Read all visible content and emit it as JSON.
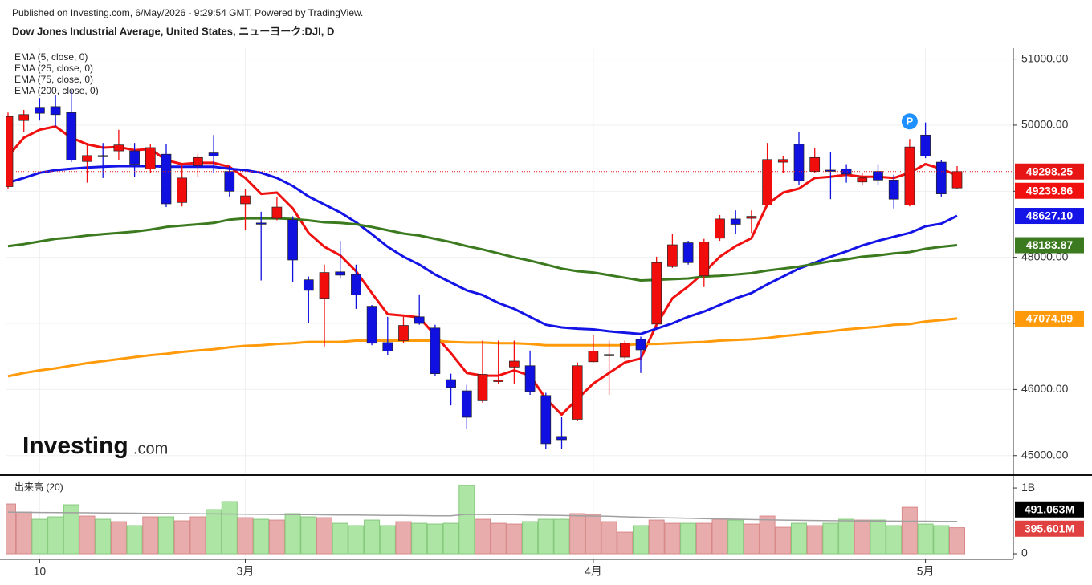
{
  "chart_data": {
    "type": "candlestick",
    "publisher": "Published on Investing.com, 6/May/2026 - 9:29:54 GMT, Powered by TradingView.",
    "title": "Dow Jones Industrial Average, United States, ニューヨーク:DJI, D",
    "logo": "Investing",
    "logo_suffix": ".com",
    "marker": {
      "label": "P",
      "index": 57,
      "color": "#1e90ff"
    },
    "categories": [
      null,
      null,
      "10",
      null,
      null,
      null,
      null,
      null,
      null,
      null,
      null,
      null,
      null,
      null,
      null,
      "3月",
      null,
      null,
      null,
      null,
      null,
      null,
      null,
      null,
      null,
      null,
      null,
      null,
      null,
      null,
      null,
      null,
      null,
      null,
      null,
      null,
      null,
      "4月",
      null,
      null,
      null,
      null,
      null,
      null,
      null,
      null,
      null,
      null,
      null,
      null,
      null,
      null,
      null,
      null,
      null,
      null,
      null,
      null,
      "5月",
      null,
      null
    ],
    "open": [
      49070,
      50070,
      50270,
      50280,
      50190,
      49450,
      49540,
      49610,
      49610,
      49340,
      49560,
      48830,
      49390,
      49580,
      49300,
      48810,
      48520,
      48590,
      48570,
      47660,
      47380,
      47780,
      47740,
      47260,
      46710,
      46740,
      47100,
      46930,
      46150,
      45980,
      45830,
      46120,
      46340,
      46360,
      45910,
      45290,
      45550,
      46420,
      46510,
      46490,
      46760,
      46990,
      47860,
      48220,
      47720,
      48290,
      48580,
      48590,
      48790,
      49440,
      49710,
      49300,
      49320,
      49340,
      49140,
      49300,
      49170,
      48790,
      49850,
      49440,
      49050
    ],
    "high": [
      50190,
      50230,
      50410,
      50460,
      50530,
      49730,
      49730,
      49930,
      49730,
      49710,
      49710,
      49410,
      49560,
      49850,
      49380,
      49040,
      48690,
      48920,
      48620,
      47710,
      47890,
      48250,
      47890,
      47280,
      47100,
      47100,
      47440,
      46980,
      46240,
      46070,
      46740,
      46740,
      46740,
      46590,
      45950,
      45580,
      46410,
      46820,
      46740,
      46740,
      46800,
      48010,
      48350,
      48250,
      48280,
      48640,
      48710,
      48710,
      49730,
      49530,
      49890,
      49650,
      49590,
      49410,
      49280,
      49410,
      49250,
      49790,
      50040,
      49470,
      49380
    ],
    "low": [
      49040,
      49890,
      50070,
      49980,
      49440,
      49130,
      49200,
      49470,
      49220,
      49280,
      48760,
      48770,
      49220,
      49280,
      48920,
      48410,
      47650,
      48560,
      47620,
      47010,
      46650,
      47680,
      47220,
      46670,
      46520,
      46700,
      46980,
      46210,
      45760,
      45400,
      45800,
      46090,
      46090,
      45920,
      45100,
      45100,
      45520,
      46410,
      45920,
      46460,
      46250,
      46970,
      47840,
      47890,
      47550,
      48250,
      48350,
      48370,
      48760,
      49280,
      49100,
      49280,
      48880,
      49130,
      49100,
      49100,
      48740,
      48770,
      49500,
      48920,
      49030
    ],
    "close": [
      50130,
      50160,
      50180,
      50160,
      49470,
      49540,
      49530,
      49700,
      49410,
      49660,
      48810,
      49200,
      49510,
      49530,
      49000,
      48930,
      48510,
      48760,
      47960,
      47500,
      47770,
      47730,
      47430,
      46700,
      46580,
      46970,
      47000,
      46240,
      46030,
      45580,
      46230,
      46140,
      46430,
      45970,
      45180,
      45240,
      46360,
      46580,
      46530,
      46700,
      46600,
      47920,
      48190,
      47920,
      48230,
      48580,
      48500,
      48620,
      49480,
      49480,
      49160,
      49510,
      49310,
      49260,
      49200,
      49170,
      48880,
      49670,
      49530,
      48960,
      49298.25
    ],
    "up_color": "#f20d0d",
    "down_color": "#1010e0",
    "close_badge_color": "#e81515",
    "series": [
      {
        "name": "EMA (5, close, 0)",
        "color": "#f01010",
        "badge": "49239.86",
        "values": [
          49530,
          49810,
          49930,
          49980,
          49810,
          49710,
          49660,
          49670,
          49620,
          49640,
          49470,
          49410,
          49430,
          49430,
          49370,
          49200,
          48960,
          48980,
          48740,
          48370,
          48160,
          48030,
          47790,
          47460,
          47140,
          47120,
          47090,
          46820,
          46550,
          46250,
          46210,
          46210,
          46290,
          46210,
          45860,
          45620,
          45860,
          46090,
          46250,
          46410,
          46470,
          46980,
          47380,
          47560,
          47770,
          48010,
          48170,
          48290,
          48800,
          48980,
          49040,
          49200,
          49220,
          49250,
          49220,
          49220,
          49200,
          49280,
          49410,
          49340,
          49239.86
        ]
      },
      {
        "name": "EMA (25, close, 0)",
        "color": "#1414e6",
        "badge": "48627.10",
        "values": [
          49130,
          49200,
          49280,
          49320,
          49340,
          49360,
          49370,
          49380,
          49380,
          49380,
          49370,
          49370,
          49370,
          49370,
          49340,
          49320,
          49280,
          49200,
          49080,
          48920,
          48800,
          48680,
          48530,
          48350,
          48160,
          48010,
          47890,
          47740,
          47620,
          47500,
          47430,
          47310,
          47220,
          47100,
          46980,
          46940,
          46920,
          46910,
          46880,
          46860,
          46840,
          46920,
          47000,
          47100,
          47180,
          47280,
          47380,
          47460,
          47590,
          47710,
          47830,
          47920,
          48010,
          48090,
          48180,
          48250,
          48310,
          48370,
          48470,
          48510,
          48627.1
        ]
      },
      {
        "name": "EMA (75, close, 0)",
        "color": "#3b7a1e",
        "badge": "48183.87",
        "values": [
          48170,
          48200,
          48240,
          48280,
          48300,
          48330,
          48350,
          48370,
          48390,
          48420,
          48460,
          48480,
          48500,
          48520,
          48570,
          48590,
          48590,
          48590,
          48580,
          48560,
          48530,
          48520,
          48500,
          48460,
          48410,
          48360,
          48330,
          48280,
          48230,
          48170,
          48120,
          48060,
          48000,
          47950,
          47890,
          47830,
          47790,
          47770,
          47730,
          47690,
          47650,
          47660,
          47670,
          47680,
          47710,
          47720,
          47740,
          47760,
          47800,
          47830,
          47860,
          47900,
          47940,
          47970,
          48010,
          48030,
          48060,
          48080,
          48130,
          48160,
          48183.87
        ]
      },
      {
        "name": "EMA (200, close, 0)",
        "color": "#ff9a0a",
        "badge": "47074.09",
        "values": [
          46200,
          46250,
          46290,
          46320,
          46360,
          46400,
          46430,
          46460,
          46490,
          46520,
          46540,
          46570,
          46590,
          46610,
          46640,
          46660,
          46670,
          46690,
          46700,
          46720,
          46720,
          46720,
          46740,
          46740,
          46740,
          46740,
          46740,
          46740,
          46720,
          46710,
          46710,
          46700,
          46700,
          46690,
          46670,
          46670,
          46670,
          46670,
          46670,
          46670,
          46690,
          46690,
          46700,
          46710,
          46720,
          46740,
          46750,
          46760,
          46780,
          46810,
          46830,
          46860,
          46880,
          46910,
          46930,
          46950,
          46980,
          46990,
          47030,
          47050,
          47074.09
        ]
      }
    ],
    "ylim": [
      44730,
      51165
    ],
    "yticks": [
      {
        "value": 45000,
        "label": "45000.00"
      },
      {
        "value": 46000,
        "label": "46000.00"
      },
      {
        "value": 47000,
        "label": "47000.00"
      },
      {
        "value": 48000,
        "label": "48000.00"
      },
      {
        "value": 49000,
        "label": "49000.00"
      },
      {
        "value": 50000,
        "label": "50000.00"
      },
      {
        "value": 51000,
        "label": "51000.00"
      }
    ],
    "grid": true,
    "volume": {
      "label": "出来高 (20)",
      "up_color": "#e8acac",
      "down_color": "#ade5a5",
      "up_edge": "#d88a8a",
      "down_edge": "#86c97c",
      "badge": "395.601M",
      "badge_color": "#e0403f",
      "values": [
        756000000,
        634000000,
        524000000,
        561000000,
        744000000,
        573000000,
        524000000,
        488000000,
        427000000,
        561000000,
        561000000,
        500000000,
        561000000,
        671000000,
        793000000,
        549000000,
        524000000,
        512000000,
        610000000,
        561000000,
        549000000,
        463000000,
        427000000,
        512000000,
        427000000,
        488000000,
        463000000,
        451000000,
        463000000,
        1037000000,
        524000000,
        463000000,
        451000000,
        488000000,
        524000000,
        524000000,
        610000000,
        598000000,
        488000000,
        329000000,
        427000000,
        512000000,
        463000000,
        463000000,
        463000000,
        524000000,
        512000000,
        451000000,
        573000000,
        402000000,
        463000000,
        427000000,
        463000000,
        524000000,
        512000000,
        512000000,
        427000000,
        707000000,
        451000000,
        427000000,
        395601000
      ],
      "ma_color": "#a0a0a0",
      "ma_badge": "491.063M",
      "ma_badge_color": "#000000",
      "ma_values": [
        634000000,
        630000000,
        628000000,
        626000000,
        624000000,
        622000000,
        620000000,
        618000000,
        616000000,
        614000000,
        612000000,
        610000000,
        608000000,
        606000000,
        604000000,
        602000000,
        600000000,
        598000000,
        596000000,
        594000000,
        592000000,
        590000000,
        588000000,
        586000000,
        584000000,
        582000000,
        580000000,
        578000000,
        576000000,
        600000000,
        598000000,
        596000000,
        594000000,
        590000000,
        586000000,
        582000000,
        578000000,
        574000000,
        570000000,
        562000000,
        556000000,
        550000000,
        545000000,
        540000000,
        535000000,
        530000000,
        525000000,
        520000000,
        516000000,
        512000000,
        508000000,
        505000000,
        502000000,
        500000000,
        498000000,
        497000000,
        496000000,
        495000000,
        494000000,
        492000000,
        491063000
      ],
      "ylim": [
        -85000000,
        1135000000
      ],
      "yticks": [
        0,
        {
          "value": 1000000000,
          "label": "1B"
        }
      ]
    }
  }
}
